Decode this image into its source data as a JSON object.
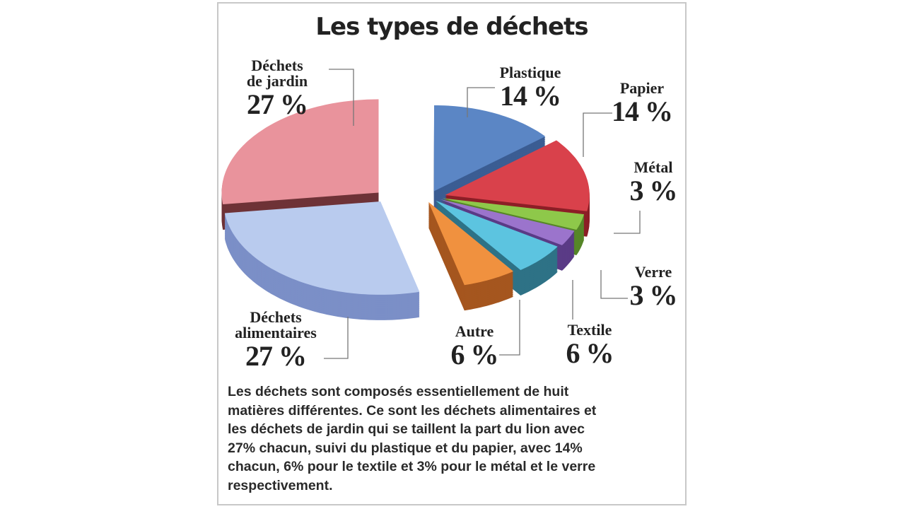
{
  "chart_data": {
    "type": "pie",
    "title": "Les types de déchets",
    "unit": "%",
    "slices": [
      {
        "name": "Plastique",
        "name_lines": [
          "Plastique"
        ],
        "value": 14,
        "label": "14 %",
        "color": "#5b86c5",
        "side": "#3b5d93"
      },
      {
        "name": "Papier",
        "name_lines": [
          "Papier"
        ],
        "value": 14,
        "label": "14 %",
        "color": "#d9414b",
        "side": "#8c1e26"
      },
      {
        "name": "Métal",
        "name_lines": [
          "Métal"
        ],
        "value": 3,
        "label": "3 %",
        "color": "#8ec84a",
        "side": "#568628"
      },
      {
        "name": "Verre",
        "name_lines": [
          "Verre"
        ],
        "value": 3,
        "label": "3 %",
        "color": "#9b74cc",
        "side": "#5a3b86"
      },
      {
        "name": "Textile",
        "name_lines": [
          "Textile"
        ],
        "value": 6,
        "label": "6 %",
        "color": "#5cc4e0",
        "side": "#2e7286"
      },
      {
        "name": "Autre",
        "name_lines": [
          "Autre"
        ],
        "value": 6,
        "label": "6 %",
        "color": "#f0913f",
        "side": "#a5561f"
      },
      {
        "name": "Déchets alimentaires",
        "name_lines": [
          "Déchets",
          "alimentaires"
        ],
        "value": 27,
        "label": "27 %",
        "color": "#b9cbee",
        "side": "#7b8fc7"
      },
      {
        "name": "Déchets de jardin",
        "name_lines": [
          "Déchets",
          "de jardin"
        ],
        "value": 27,
        "label": "27 %",
        "color": "#e9939c",
        "side": "#6e3237"
      }
    ]
  },
  "description": [
    "Les déchets sont composés essentiellement de huit",
    "matières différentes. Ce sont les déchets alimentaires et",
    "les déchets de jardin qui se taillent la part du lion avec",
    "27% chacun, suivi du plastique et du papier, avec 14%",
    "chacun, 6% pour le textile et 3% pour le métal et le verre",
    "respectivement."
  ]
}
